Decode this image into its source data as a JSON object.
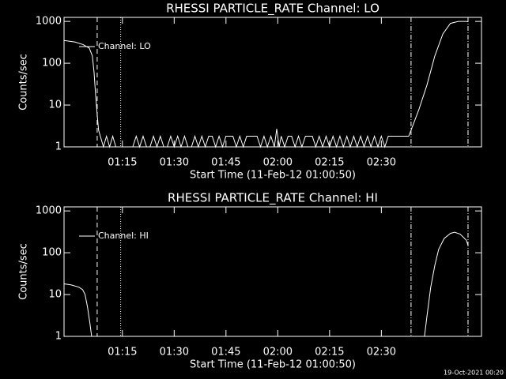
{
  "chart_data": [
    {
      "type": "line",
      "title": "RHESSI PARTICLE_RATE Channel: LO",
      "x_label": "Start Time (11-Feb-12 01:00:50)",
      "y_label": "Counts/sec",
      "log_y": true,
      "legend": "upper-left",
      "xlim": [
        -1.9,
        119
      ],
      "ylim": [
        1,
        1250
      ],
      "xticks": [
        {
          "value": 15,
          "label": "01:15"
        },
        {
          "value": 30,
          "label": "01:30"
        },
        {
          "value": 45,
          "label": "01:45"
        },
        {
          "value": 60,
          "label": "02:00"
        },
        {
          "value": 75,
          "label": "02:15"
        },
        {
          "value": 90,
          "label": "02:30"
        }
      ],
      "yticks": [
        1,
        10,
        100,
        1000
      ],
      "vlines": [
        {
          "x": 7.7,
          "style": "dashed"
        },
        {
          "x": 14.5,
          "style": "dotted"
        },
        {
          "x": 98.6,
          "style": "dashdot"
        },
        {
          "x": 115.1,
          "style": "dashdot"
        }
      ],
      "x": [
        -1.9,
        1.3,
        3.6,
        5.4,
        6.3,
        6.8,
        7.2,
        7.7,
        8.1,
        8.6,
        9.5,
        10.4,
        11.3,
        12.2,
        13.1,
        14,
        18,
        19,
        20,
        21,
        22,
        23,
        24,
        25,
        26,
        27,
        28,
        29,
        30,
        31,
        32,
        33,
        34,
        35,
        36,
        37,
        38,
        39,
        40,
        41,
        42,
        43,
        44,
        45,
        46,
        47,
        48,
        49,
        50,
        51,
        52,
        53,
        54,
        55,
        56,
        57,
        58,
        59,
        59.7,
        60.4,
        61,
        62,
        63,
        64,
        65,
        66,
        67,
        68,
        69,
        70,
        71,
        72,
        73,
        74,
        75,
        76,
        77,
        78,
        79,
        80,
        81,
        82,
        83,
        84,
        85,
        86,
        87,
        88,
        89,
        90,
        91,
        92,
        93,
        94,
        95,
        96,
        97.9,
        98.6,
        100.9,
        103.2,
        105.5,
        107.8,
        110,
        112.3,
        114.6,
        115.1
      ],
      "series": [
        {
          "name": "Channel: LO",
          "color": "#ffffff",
          "values": [
            350,
            320,
            280,
            230,
            150,
            60,
            20,
            6,
            2.5,
            1.8,
            1,
            1.8,
            1,
            1.8,
            1,
            1,
            1,
            1.8,
            1,
            1.8,
            1,
            1,
            1.8,
            1,
            1.8,
            1,
            1,
            1.8,
            1,
            1.8,
            1,
            1.8,
            1,
            1,
            1.8,
            1,
            1.8,
            1,
            1.8,
            1.8,
            1,
            1.8,
            1,
            1.8,
            1.8,
            1.8,
            1,
            1.8,
            1,
            1.8,
            1.8,
            1.8,
            1.8,
            1,
            1.8,
            1,
            1.8,
            1,
            2.7,
            1,
            1.8,
            1,
            1.8,
            1.8,
            1,
            1.8,
            1,
            1.8,
            1.8,
            1.8,
            1,
            1.8,
            1,
            1.8,
            1,
            1.8,
            1,
            1.8,
            1,
            1.8,
            1,
            1.8,
            1,
            1.8,
            1,
            1.8,
            1,
            1.8,
            1,
            1.8,
            1,
            1.8,
            1.8,
            1.8,
            1.8,
            1.8,
            1.8,
            2.5,
            8,
            30,
            150,
            500,
            900,
            1000,
            1000,
            980
          ]
        }
      ]
    },
    {
      "type": "line",
      "title": "RHESSI PARTICLE_RATE Channel: HI",
      "x_label": "Start Time (11-Feb-12 01:00:50)",
      "y_label": "Counts/sec",
      "log_y": true,
      "legend": "upper-left",
      "xlim": [
        -1.9,
        119
      ],
      "ylim": [
        1,
        1250
      ],
      "xticks": [
        {
          "value": 15,
          "label": "01:15"
        },
        {
          "value": 30,
          "label": "01:30"
        },
        {
          "value": 45,
          "label": "01:45"
        },
        {
          "value": 60,
          "label": "02:00"
        },
        {
          "value": 75,
          "label": "02:15"
        },
        {
          "value": 90,
          "label": "02:30"
        }
      ],
      "yticks": [
        1,
        10,
        100,
        1000
      ],
      "vlines": [
        {
          "x": 7.7,
          "style": "dashed"
        },
        {
          "x": 14.5,
          "style": "dotted"
        },
        {
          "x": 98.6,
          "style": "dashdot"
        },
        {
          "x": 115.1,
          "style": "dashdot"
        }
      ],
      "x": [
        -1.9,
        0.1,
        2.4,
        3.5,
        4.2,
        4.9,
        5.6,
        6.1,
        50,
        102.5,
        103.2,
        104.3,
        105.5,
        106.6,
        108.2,
        110,
        111.2,
        112.8,
        114.6,
        115.1
      ],
      "series": [
        {
          "name": "Channel: HI",
          "color": "#ffffff",
          "values": [
            18,
            17,
            15,
            13,
            10,
            5,
            2,
            1,
            null,
            1,
            3,
            15,
            50,
            120,
            220,
            290,
            310,
            280,
            200,
            150
          ]
        }
      ]
    }
  ],
  "footer": "19-Oct-2021 00:20"
}
